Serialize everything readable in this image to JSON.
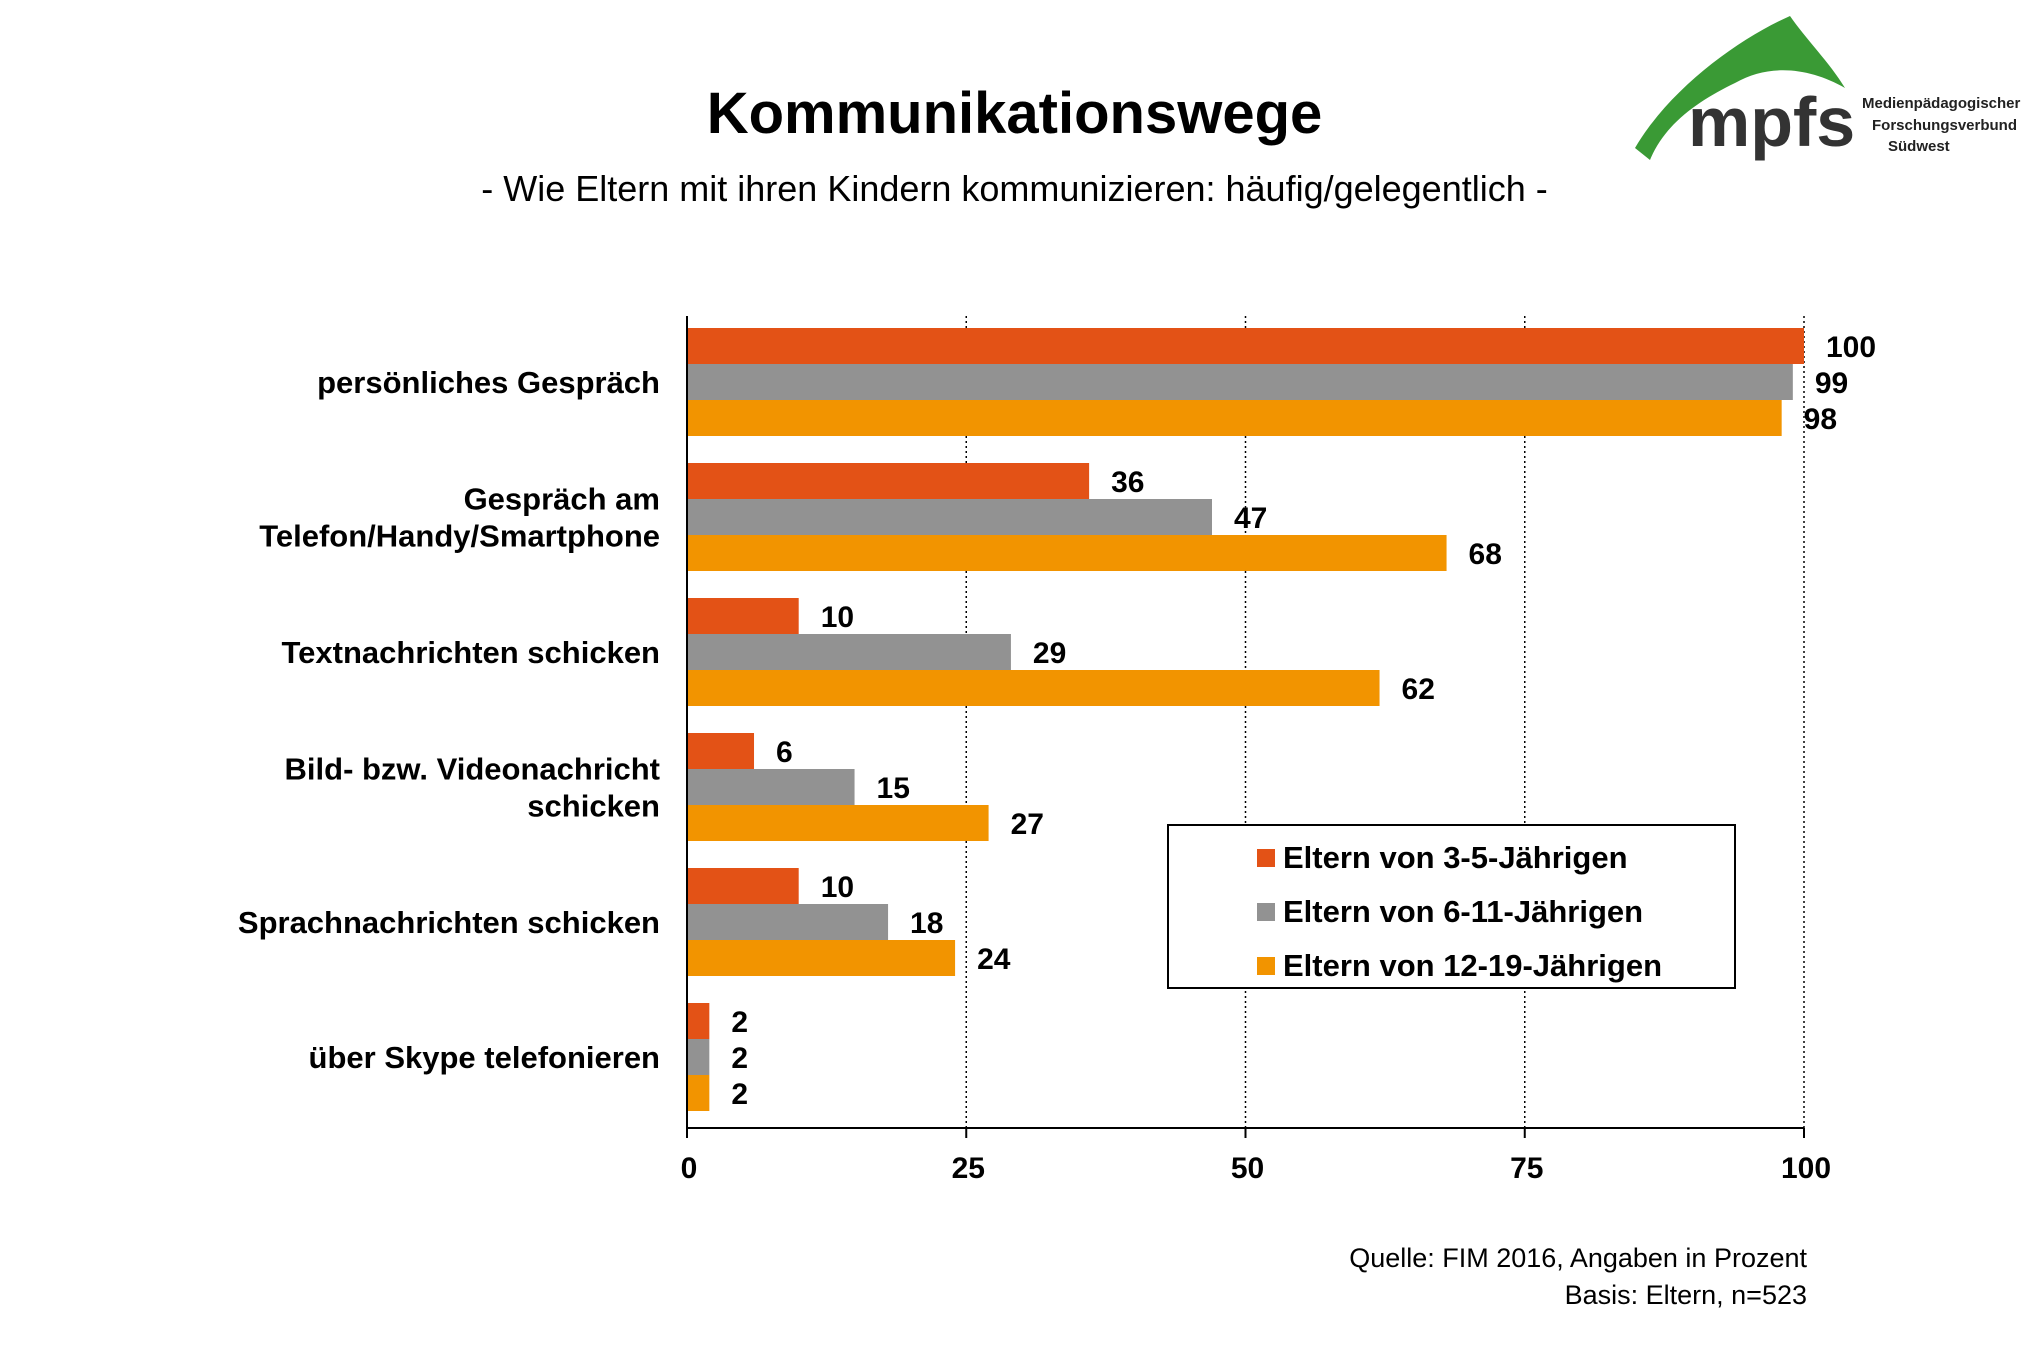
{
  "header": {
    "title": "Kommunikationswege",
    "subtitle": "- Wie Eltern mit ihren Kindern kommunizieren: häufig/gelegentlich -"
  },
  "logo": {
    "brand": "mpfs",
    "line1": "Medienpädagogischer",
    "line2": "Forschungsverbund",
    "line3": "Südwest",
    "color": "#3a9a35"
  },
  "chart_data": {
    "type": "bar",
    "orientation": "horizontal",
    "categories": [
      [
        "persönliches Gespräch"
      ],
      [
        "Gespräch am",
        "Telefon/Handy/Smartphone"
      ],
      [
        "Textnachrichten schicken"
      ],
      [
        "Bild- bzw. Videonachricht",
        "schicken"
      ],
      [
        "Sprachnachrichten schicken"
      ],
      [
        "über Skype telefonieren"
      ]
    ],
    "series": [
      {
        "name": "Eltern von 3-5-Jährigen",
        "color": "#e35216",
        "values": [
          100,
          36,
          10,
          6,
          10,
          2
        ]
      },
      {
        "name": "Eltern von 6-11-Jährigen",
        "color": "#929292",
        "values": [
          99,
          47,
          29,
          15,
          18,
          2
        ]
      },
      {
        "name": "Eltern von 12-19-Jährigen",
        "color": "#f29400",
        "values": [
          98,
          68,
          62,
          27,
          24,
          2
        ]
      }
    ],
    "xlim": [
      0,
      100
    ],
    "xticks": [
      "0",
      "25",
      "50",
      "75",
      "100"
    ],
    "grid": "vertical dotted",
    "legend_position": "bottom-right"
  },
  "footer": {
    "source": "Quelle: FIM 2016,  Angaben  in Prozent",
    "basis": "Basis: Eltern, n=523"
  }
}
